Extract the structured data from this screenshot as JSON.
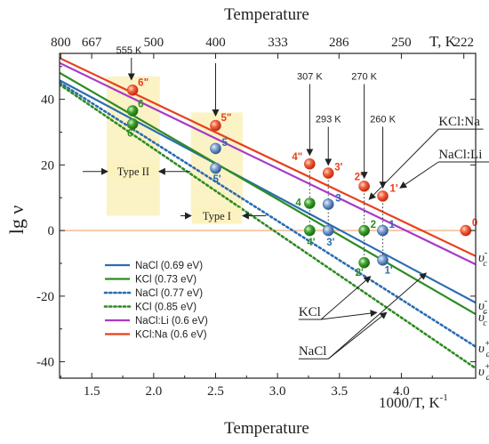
{
  "chart_data": {
    "type": "line",
    "title": "",
    "xlabel": "Temperature",
    "xlabel_top": "Temperature",
    "x_unit_label": "1000/T, K",
    "x_unit_exp": "-1",
    "top_unit_label": "T, K",
    "ylabel": "lg ν",
    "xlim": [
      1.24,
      4.6
    ],
    "ylim": [
      -45,
      54
    ],
    "x_ticks": [
      1.5,
      2.0,
      2.5,
      3.0,
      3.5,
      4.0
    ],
    "x_tick_labels": [
      "1.5",
      "2.0",
      "2.5",
      "3.0",
      "3.5",
      "4.0"
    ],
    "y_ticks": [
      -40,
      -20,
      0,
      20,
      40
    ],
    "y_tick_labels": [
      "-40",
      "-20",
      "0",
      "20",
      "40"
    ],
    "top_ticks": [
      {
        "x": 1.25,
        "label": "800"
      },
      {
        "x": 1.4993,
        "label": "667"
      },
      {
        "x": 2.0,
        "label": "500"
      },
      {
        "x": 2.5,
        "label": "400"
      },
      {
        "x": 3.003,
        "label": "333"
      },
      {
        "x": 3.4965,
        "label": "286"
      },
      {
        "x": 4.0,
        "label": "250"
      },
      {
        "x": 4.5045,
        "label": "222"
      }
    ],
    "grid": false,
    "legend_position": "bottom-left",
    "series": [
      {
        "name": "NaCl (0.69 eV)",
        "color": "#2b6cb0",
        "dash": "solid",
        "x": [
          1.24,
          4.6
        ],
        "y": [
          45.8,
          -22.0
        ]
      },
      {
        "name": "KCl (0.73 eV)",
        "color": "#2e8b22",
        "dash": "solid",
        "x": [
          1.24,
          4.6
        ],
        "y": [
          48.1,
          -25.5
        ]
      },
      {
        "name": "NaCl (0.77 eV)",
        "color": "#2b6cb0",
        "dash": "dotted",
        "x": [
          1.24,
          4.6
        ],
        "y": [
          45.1,
          -35.4
        ]
      },
      {
        "name": "KCl (0.85 eV)",
        "color": "#2e8b22",
        "dash": "dotted",
        "x": [
          1.24,
          4.6
        ],
        "y": [
          44.5,
          -42.0
        ]
      },
      {
        "name": "NaCl:Li (0.6 eV)",
        "color": "#a83ac8",
        "dash": "solid",
        "x": [
          1.24,
          4.6
        ],
        "y": [
          51.1,
          -10.3
        ]
      },
      {
        "name": "KCl:Na (0.6 eV)",
        "color": "#e8401c",
        "dash": "solid",
        "x": [
          1.24,
          4.6
        ],
        "y": [
          52.6,
          -7.8
        ]
      }
    ],
    "reference_line": {
      "y": 0,
      "color": "#f2b48c"
    },
    "points": [
      {
        "label": "6\"",
        "x": 1.83,
        "y": 42.8,
        "color": "#e8401c",
        "label_dx": 6,
        "label_dy": -5
      },
      {
        "label": "6",
        "x": 1.83,
        "y": 36.5,
        "color": "#2e8b22",
        "label_dx": 6,
        "label_dy": -4
      },
      {
        "label": "6'",
        "x": 1.83,
        "y": 32.5,
        "color": "#2e8b22",
        "label_dx": -6,
        "label_dy": 14
      },
      {
        "label": "5\"",
        "x": 2.5,
        "y": 32.0,
        "color": "#e8401c",
        "label_dx": 6,
        "label_dy": -5
      },
      {
        "label": "5",
        "x": 2.5,
        "y": 25.0,
        "color": "#2b6cb0",
        "label_dx": 7,
        "label_dy": -3
      },
      {
        "label": "5'",
        "x": 2.5,
        "y": 19.0,
        "color": "#2b6cb0",
        "label_dx": -3,
        "label_dy": 16
      },
      {
        "label": "4\"",
        "x": 3.26,
        "y": 20.3,
        "color": "#e8401c",
        "label_dx": -20,
        "label_dy": -4
      },
      {
        "label": "4",
        "x": 3.26,
        "y": 8.3,
        "color": "#2e8b22",
        "label_dx": -16,
        "label_dy": 3
      },
      {
        "label": "4'",
        "x": 3.26,
        "y": 0.0,
        "color": "#2e8b22",
        "label_dx": -3,
        "label_dy": 17
      },
      {
        "label": "3'",
        "x": 3.41,
        "y": 17.5,
        "color": "#e8401c",
        "label_dx": 7,
        "label_dy": -3
      },
      {
        "label": "3",
        "x": 3.41,
        "y": 8.0,
        "color": "#2b6cb0",
        "label_dx": 8,
        "label_dy": -3
      },
      {
        "label": "3'",
        "x": 3.41,
        "y": 0.0,
        "color": "#2b6cb0",
        "label_dx": -2,
        "label_dy": 17
      },
      {
        "label": "2'",
        "x": 3.7,
        "y": 13.5,
        "color": "#e8401c",
        "label_dx": -11,
        "label_dy": -7
      },
      {
        "label": "2",
        "x": 3.7,
        "y": 0.0,
        "color": "#2e8b22",
        "label_dx": 7,
        "label_dy": -3
      },
      {
        "label": "2'",
        "x": 3.7,
        "y": -9.8,
        "color": "#2e8b22",
        "label_dx": -10,
        "label_dy": 15
      },
      {
        "label": "1'",
        "x": 3.85,
        "y": 10.5,
        "color": "#e8401c",
        "label_dx": 8,
        "label_dy": -5
      },
      {
        "label": "1",
        "x": 3.85,
        "y": 0.0,
        "color": "#2b6cb0",
        "label_dx": 7,
        "label_dy": -3
      },
      {
        "label": "1'",
        "x": 3.85,
        "y": -9.0,
        "color": "#2b6cb0",
        "label_dx": 2,
        "label_dy": 15
      },
      {
        "label": "0",
        "x": 4.52,
        "y": 0.0,
        "color": "#e8401c",
        "label_dx": 7,
        "label_dy": -5
      }
    ],
    "guides": [
      {
        "x": 3.26,
        "y_from": 20.3,
        "y_to": 0.0
      },
      {
        "x": 3.41,
        "y_from": 17.5,
        "y_to": 0.0
      },
      {
        "x": 3.7,
        "y_from": 13.5,
        "y_to": -9.8
      },
      {
        "x": 3.85,
        "y_from": 10.5,
        "y_to": -9.0
      }
    ],
    "temp_annotations": [
      {
        "label": "555 K",
        "x": 1.8,
        "arrow_x": 1.82,
        "label_y": 54,
        "arrow_y": 46
      },
      {
        "label": "307 K",
        "x": 3.26,
        "arrow_x": 3.26,
        "label_y": 46,
        "arrow_y": 23
      },
      {
        "label": "293 K",
        "x": 3.41,
        "arrow_x": 3.41,
        "label_y": 33,
        "arrow_y": 20
      },
      {
        "label": "270 K",
        "x": 3.7,
        "arrow_x": 3.7,
        "label_y": 46,
        "arrow_y": 16
      },
      {
        "label": "260 K",
        "x": 3.85,
        "arrow_x": 3.85,
        "label_y": 33,
        "arrow_y": 13
      }
    ],
    "unlabeled_arrow": {
      "x": 2.5,
      "y_from": 51,
      "y_to": 35
    },
    "boxes": [
      {
        "label": "Type II",
        "x0": 1.62,
        "x1": 2.05,
        "y0": 4.5,
        "y1": 47,
        "label_y": 18
      },
      {
        "label": "Type I",
        "x0": 2.3,
        "x1": 2.72,
        "y0": 4.5,
        "y1": 36,
        "label_y": 4.5
      }
    ],
    "box_arrows": [
      {
        "x_left": 1.24,
        "x_right": 2.34,
        "y": 18,
        "label": "Type II"
      },
      {
        "x_left": 2.03,
        "x_right": 2.95,
        "y": 4.5,
        "label": "Type I"
      }
    ],
    "callouts": [
      {
        "label": "KCl:Na",
        "lx": 4.3,
        "ly": 32,
        "tx": 3.74,
        "ty": 9.5
      },
      {
        "label": "NaCl:Li",
        "lx": 4.3,
        "ly": 22,
        "tx": 3.99,
        "ty": 13
      },
      {
        "label": "KCl",
        "lx": 3.17,
        "ly": -26,
        "tx": 3.75,
        "ty": -14
      },
      {
        "label": "NaCl",
        "lx": 3.17,
        "ly": -38,
        "tx": 3.88,
        "ty": -25
      }
    ],
    "callout_splits": [
      {
        "from": "KCl",
        "tx": 3.8,
        "ty": -25
      },
      {
        "from": "NaCl",
        "tx": 4.2,
        "ty": -13
      }
    ],
    "right_labels": [
      {
        "base": "υ",
        "sub": "c",
        "sup": "-",
        "y": -7.3
      },
      {
        "base": "υ",
        "sub": "c",
        "sup": "-",
        "y": -22.0
      },
      {
        "base": "υ",
        "sub": "c",
        "sup": "-",
        "y": -25.5
      },
      {
        "base": "υ",
        "sub": "a",
        "sup": "+",
        "y": -35.0
      },
      {
        "base": "υ",
        "sub": "a",
        "sup": "+",
        "y": -42.0
      }
    ]
  }
}
